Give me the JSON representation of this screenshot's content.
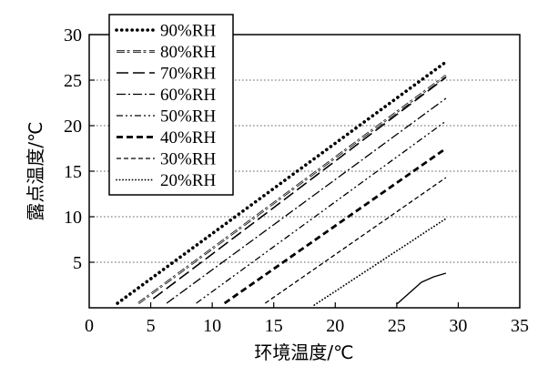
{
  "chart_data": {
    "type": "line",
    "xlabel": "环境温度/℃",
    "ylabel": "露点温度/℃",
    "xlim": [
      0,
      35
    ],
    "ylim": [
      0,
      30
    ],
    "x_ticks": [
      "0",
      "5",
      "10",
      "15",
      "20",
      "25",
      "30",
      "35"
    ],
    "y_ticks": [
      "5",
      "10",
      "15",
      "20",
      "25",
      "30"
    ],
    "grid": "horizontal dotted",
    "legend_position": "top-left",
    "series": [
      {
        "name": "90%RH",
        "x": [
          2.3,
          29
        ],
        "y": [
          0.5,
          27
        ],
        "style": "dense-dots"
      },
      {
        "name": "80%RH",
        "x": [
          4,
          29
        ],
        "y": [
          0.5,
          25.5
        ],
        "style": "double-dash"
      },
      {
        "name": "70%RH",
        "x": [
          5.2,
          29
        ],
        "y": [
          1,
          25.3
        ],
        "style": "long-dash"
      },
      {
        "name": "60%RH",
        "x": [
          6.3,
          29
        ],
        "y": [
          0.5,
          23
        ],
        "style": "dash-dot"
      },
      {
        "name": "50%RH",
        "x": [
          8.7,
          29
        ],
        "y": [
          0.5,
          20.5
        ],
        "style": "dash-dot-dot"
      },
      {
        "name": "40%RH",
        "x": [
          11,
          29
        ],
        "y": [
          0.5,
          17.5
        ],
        "style": "thick-short-dash"
      },
      {
        "name": "30%RH",
        "x": [
          14.3,
          29
        ],
        "y": [
          0.5,
          14.3
        ],
        "style": "fine-dash"
      },
      {
        "name": "20%RH",
        "x": [
          18.3,
          29
        ],
        "y": [
          0.3,
          9.8
        ],
        "style": "fine-dots"
      },
      {
        "name": "",
        "x": [
          25,
          26,
          27,
          28,
          29
        ],
        "y": [
          0.4,
          1.6,
          2.8,
          3.4,
          3.8
        ],
        "style": "solid"
      }
    ]
  }
}
